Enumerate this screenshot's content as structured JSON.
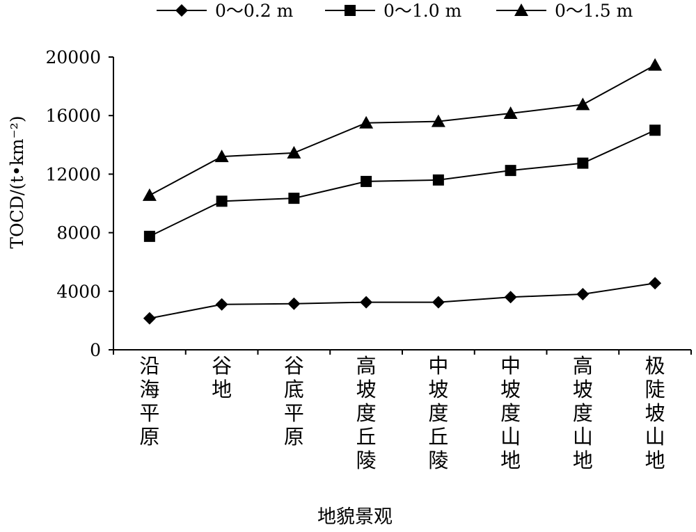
{
  "chart_data": {
    "type": "line",
    "xlabel": "地貌景观",
    "ylabel": "TOCD/(t•km⁻²)",
    "ylim": [
      0,
      20000
    ],
    "yticks": [
      "0",
      "4000",
      "8000",
      "12000",
      "16000",
      "20000"
    ],
    "grid": false,
    "legend_position": "top",
    "categories": [
      "沿海平原",
      "谷地",
      "谷底平原",
      "高坡度丘陵",
      "中坡度丘陵",
      "中坡度山地",
      "高坡度山地",
      "极陡坡山地"
    ],
    "series": [
      {
        "name": "0～0.2 m",
        "marker": "diamond",
        "values": [
          2150,
          3100,
          3150,
          3250,
          3250,
          3600,
          3800,
          4550
        ]
      },
      {
        "name": "0～1.0 m",
        "marker": "square",
        "values": [
          7750,
          10150,
          10350,
          11500,
          11600,
          12250,
          12750,
          15000
        ]
      },
      {
        "name": "0～1.5 m",
        "marker": "triangle",
        "values": [
          10550,
          13200,
          13450,
          15500,
          15600,
          16150,
          16750,
          19450
        ]
      }
    ],
    "color": "#000000"
  }
}
